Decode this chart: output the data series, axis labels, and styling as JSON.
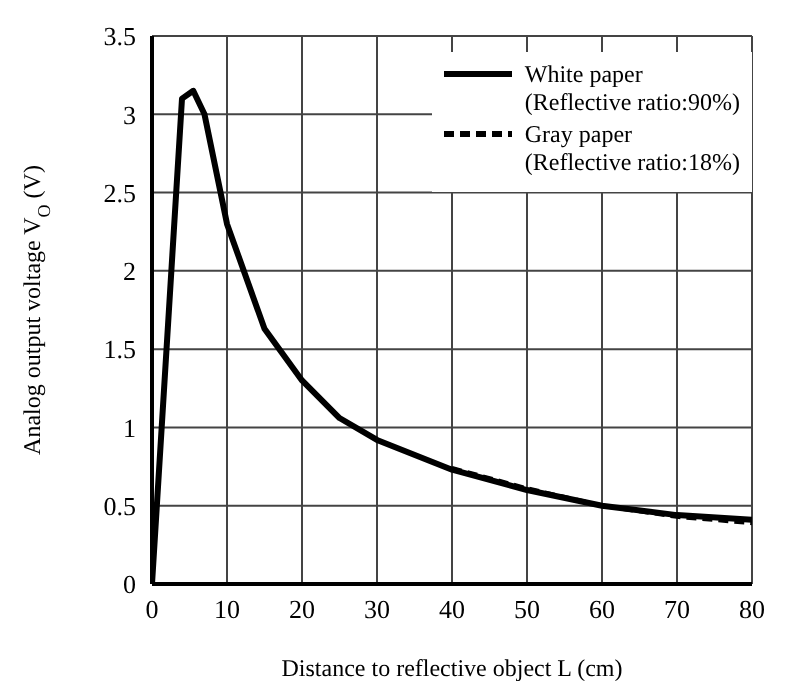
{
  "chart_data": {
    "type": "line",
    "xlabel": "Distance to reflective object L (cm)",
    "ylabel": "Analog output voltage V$_{O}$ (V)",
    "x": [
      0,
      4,
      5.5,
      7,
      10,
      15,
      20,
      25,
      30,
      40,
      50,
      60,
      70,
      80
    ],
    "series": [
      {
        "name": "White paper\n(Reflective ratio:90%)",
        "color": "#000000",
        "line_style": "solid",
        "values": [
          0,
          3.1,
          3.15,
          3.0,
          2.3,
          1.63,
          1.3,
          1.06,
          0.92,
          0.73,
          0.6,
          0.5,
          0.44,
          0.41
        ]
      },
      {
        "name": "Gray paper\n(Reflective ratio:18%)",
        "color": "#000000",
        "line_style": "dashed",
        "values": [
          null,
          null,
          null,
          null,
          null,
          null,
          null,
          null,
          null,
          0.74,
          0.61,
          0.5,
          0.43,
          0.39
        ]
      }
    ],
    "xlim": [
      0,
      80
    ],
    "xticks": [
      0,
      10,
      20,
      30,
      40,
      50,
      60,
      70,
      80
    ],
    "ylim": [
      0,
      3.5
    ],
    "yticks": [
      0,
      0.5,
      1,
      1.5,
      2,
      2.5,
      3,
      3.5
    ],
    "grid": true,
    "legend": "top right",
    "marker": "none"
  }
}
